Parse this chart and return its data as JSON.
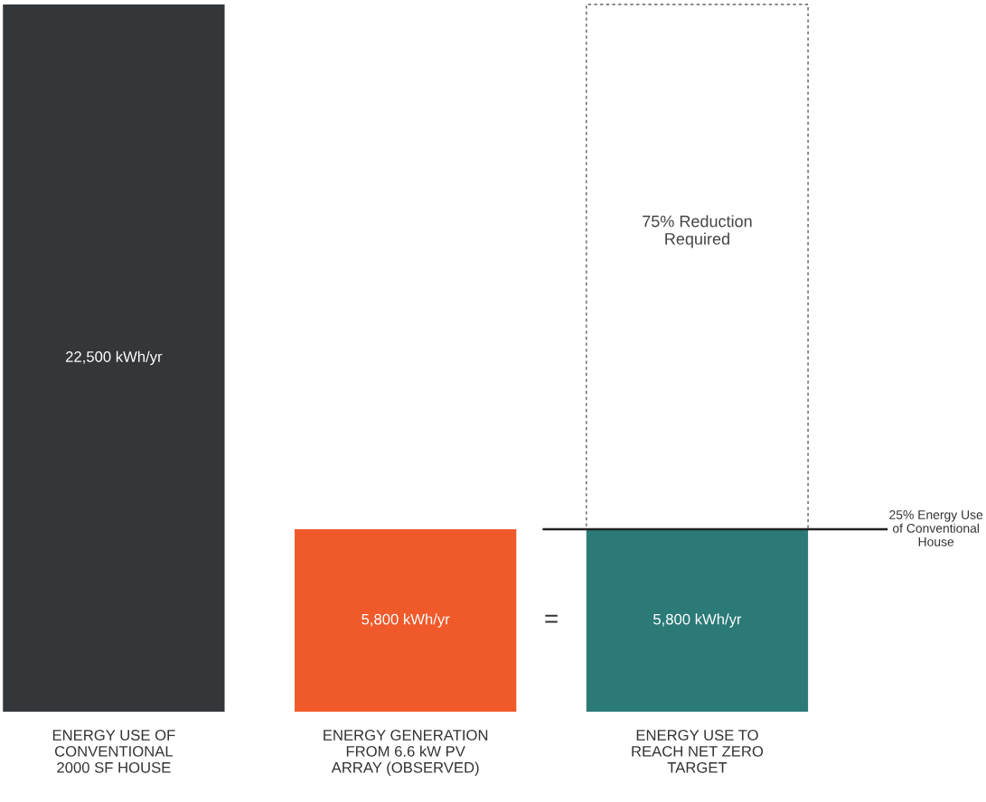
{
  "chart_data": {
    "type": "bar",
    "categories": [
      "ENERGY USE OF\nCONVENTIONAL\n2000 SF HOUSE",
      "ENERGY GENERATION\nFROM 6.6 kW PV\nARRAY (OBSERVED)",
      "ENERGY USE TO\nREACH NET ZERO\nTARGET"
    ],
    "values": [
      22500,
      5800,
      5800
    ],
    "colors": [
      "#33373a",
      "#f05a2b",
      "#2b7a78"
    ],
    "value_labels": [
      "22,500 kWh/yr",
      "5,800 kWh/yr",
      "5,800 kWh/yr"
    ],
    "ref_lines": [
      {
        "axis": "y",
        "value": 5800,
        "label": "25% Energy Use\nof Conventional\nHouse",
        "color": "#222222",
        "line_style": "solid"
      }
    ],
    "annotations": [
      "75% Reduction\nRequired",
      "="
    ],
    "legend": false
  }
}
